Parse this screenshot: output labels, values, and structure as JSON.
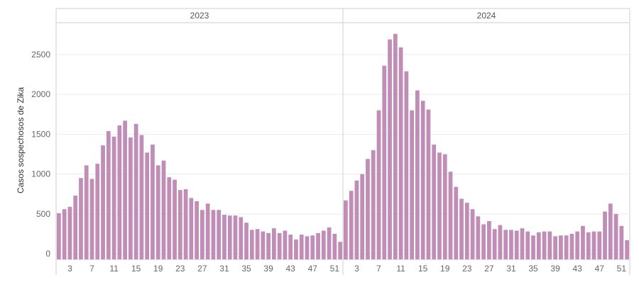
{
  "chart_data": {
    "type": "bar",
    "title": "",
    "xlabel": "",
    "ylabel": "Casos sospechosos de Zika",
    "ylim": [
      -70,
      2900
    ],
    "yticks": [
      0,
      500,
      1000,
      1500,
      2000,
      2500
    ],
    "grid": "horizontal",
    "bar_color": "#c08db6",
    "panels": [
      {
        "label": "2023",
        "weeks": [
          1,
          2,
          3,
          4,
          5,
          6,
          7,
          8,
          9,
          10,
          11,
          12,
          13,
          14,
          15,
          16,
          17,
          18,
          19,
          20,
          21,
          22,
          23,
          24,
          25,
          26,
          27,
          28,
          29,
          30,
          31,
          32,
          33,
          34,
          35,
          36,
          37,
          38,
          39,
          40,
          41,
          42,
          43,
          44,
          45,
          46,
          47,
          48,
          49,
          50,
          51,
          52
        ],
        "xtick_labels": [
          "3",
          "7",
          "11",
          "15",
          "19",
          "23",
          "27",
          "31",
          "35",
          "39",
          "43",
          "47",
          "51"
        ],
        "xtick_weeks": [
          3,
          7,
          11,
          15,
          19,
          23,
          27,
          31,
          35,
          39,
          43,
          47,
          51
        ],
        "values": [
          510,
          560,
          590,
          730,
          950,
          1110,
          940,
          1130,
          1360,
          1540,
          1470,
          1610,
          1670,
          1460,
          1630,
          1490,
          1270,
          1370,
          1110,
          1170,
          960,
          930,
          800,
          810,
          700,
          660,
          550,
          630,
          550,
          550,
          490,
          480,
          480,
          460,
          390,
          300,
          310,
          280,
          260,
          320,
          260,
          290,
          240,
          180,
          240,
          220,
          230,
          260,
          290,
          330,
          250,
          150
        ]
      },
      {
        "label": "2024",
        "weeks": [
          1,
          2,
          3,
          4,
          5,
          6,
          7,
          8,
          9,
          10,
          11,
          12,
          13,
          14,
          15,
          16,
          17,
          18,
          19,
          20,
          21,
          22,
          23,
          24,
          25,
          26,
          27,
          28,
          29,
          30,
          31,
          32,
          33,
          34,
          35,
          36,
          37,
          38,
          39,
          40,
          41,
          42,
          43,
          44,
          45,
          46,
          47,
          48,
          49,
          50,
          51,
          52
        ],
        "xtick_labels": [
          "3",
          "7",
          "11",
          "15",
          "19",
          "23",
          "27",
          "31",
          "35",
          "39",
          "43",
          "47",
          "51"
        ],
        "xtick_weeks": [
          3,
          7,
          11,
          15,
          19,
          23,
          27,
          31,
          35,
          39,
          43,
          47,
          51
        ],
        "values": [
          670,
          790,
          920,
          1000,
          1190,
          1300,
          1800,
          2360,
          2690,
          2760,
          2590,
          2290,
          1800,
          2050,
          1920,
          1810,
          1370,
          1270,
          1250,
          1030,
          840,
          690,
          640,
          560,
          470,
          370,
          410,
          310,
          360,
          300,
          300,
          290,
          320,
          280,
          230,
          270,
          280,
          280,
          220,
          230,
          230,
          250,
          280,
          350,
          270,
          280,
          280,
          530,
          630,
          500,
          350,
          170
        ]
      }
    ]
  }
}
